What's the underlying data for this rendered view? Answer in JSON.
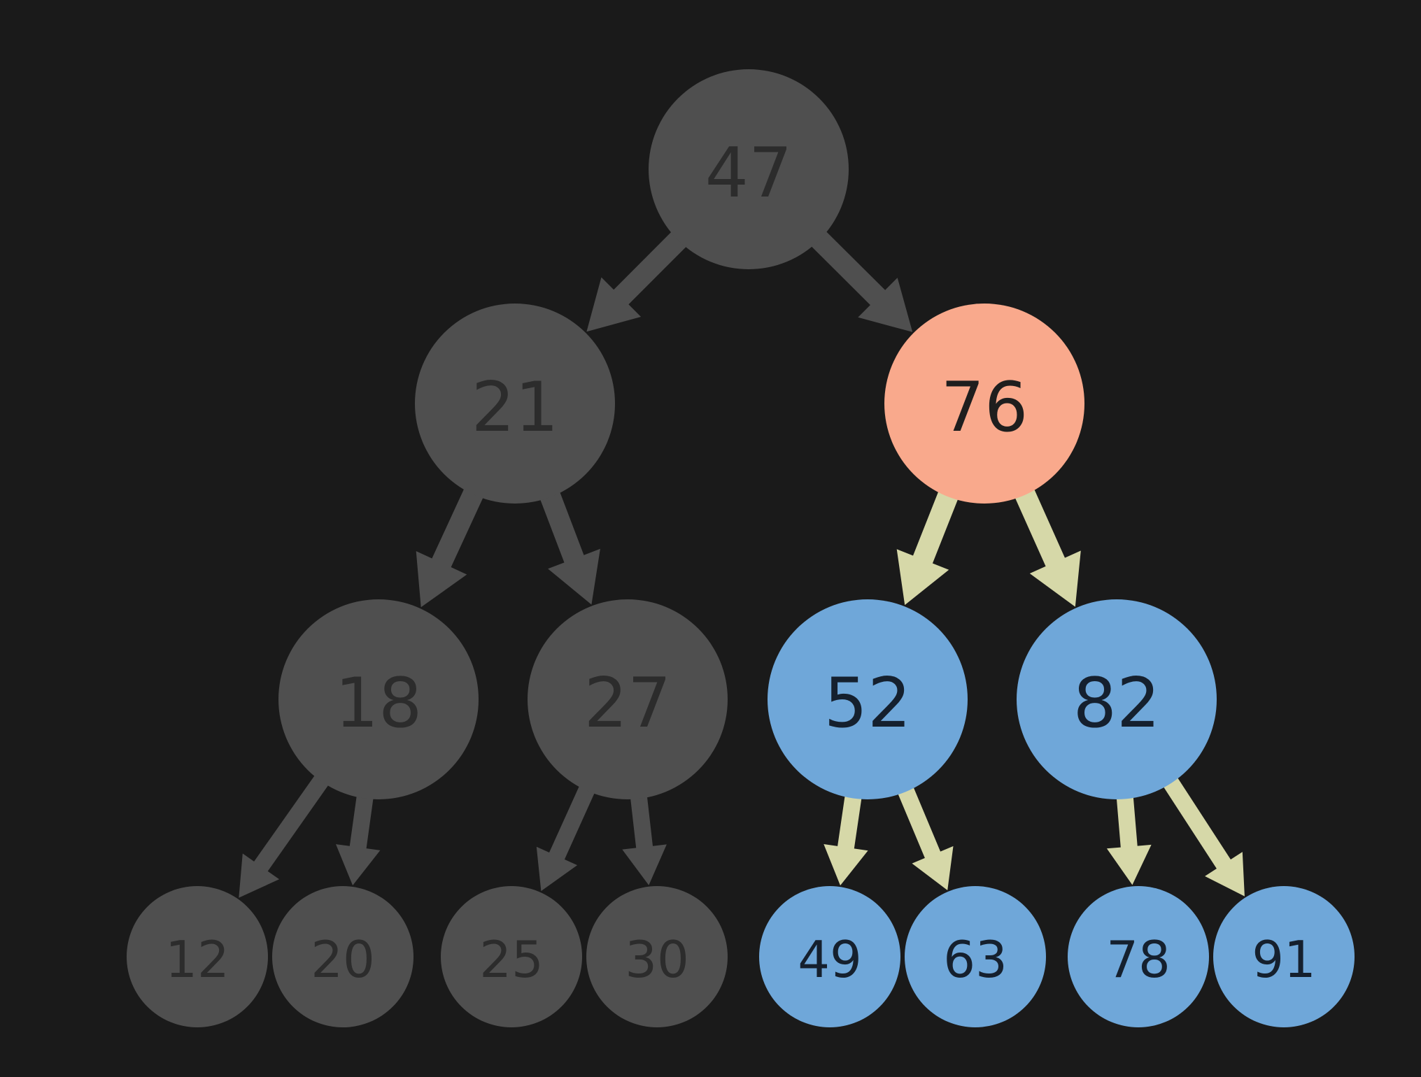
{
  "colors": {
    "background": "#1a1a1a",
    "dim_node": "#4f4f4f",
    "dim_text": "#2c2c2c",
    "dim_edge": "#4f4f4f",
    "highlight_node": "#f9a98c",
    "highlight_text": "#1e1e1e",
    "subtree_node": "#6fa7d9",
    "subtree_text": "#15202e",
    "subtree_edge": "#d6d8a8"
  },
  "tree": {
    "nodes": [
      {
        "id": "n47",
        "label": "47",
        "state": "dim",
        "level": 0
      },
      {
        "id": "n21",
        "label": "21",
        "state": "dim",
        "level": 1
      },
      {
        "id": "n76",
        "label": "76",
        "state": "highlight",
        "level": 1
      },
      {
        "id": "n18",
        "label": "18",
        "state": "dim",
        "level": 2
      },
      {
        "id": "n27",
        "label": "27",
        "state": "dim",
        "level": 2
      },
      {
        "id": "n52",
        "label": "52",
        "state": "subtree",
        "level": 2
      },
      {
        "id": "n82",
        "label": "82",
        "state": "subtree",
        "level": 2
      },
      {
        "id": "n12",
        "label": "12",
        "state": "dim",
        "level": 3
      },
      {
        "id": "n20",
        "label": "20",
        "state": "dim",
        "level": 3
      },
      {
        "id": "n25",
        "label": "25",
        "state": "dim",
        "level": 3
      },
      {
        "id": "n30",
        "label": "30",
        "state": "dim",
        "level": 3
      },
      {
        "id": "n49",
        "label": "49",
        "state": "subtree",
        "level": 3
      },
      {
        "id": "n63",
        "label": "63",
        "state": "subtree",
        "level": 3
      },
      {
        "id": "n78",
        "label": "78",
        "state": "subtree",
        "level": 3
      },
      {
        "id": "n91",
        "label": "91",
        "state": "subtree",
        "level": 3
      }
    ],
    "edges": [
      {
        "from": "n47",
        "to": "n21",
        "state": "dim"
      },
      {
        "from": "n47",
        "to": "n76",
        "state": "dim"
      },
      {
        "from": "n21",
        "to": "n18",
        "state": "dim"
      },
      {
        "from": "n21",
        "to": "n27",
        "state": "dim"
      },
      {
        "from": "n76",
        "to": "n52",
        "state": "subtree"
      },
      {
        "from": "n76",
        "to": "n82",
        "state": "subtree"
      },
      {
        "from": "n18",
        "to": "n12",
        "state": "dim"
      },
      {
        "from": "n18",
        "to": "n20",
        "state": "dim"
      },
      {
        "from": "n27",
        "to": "n25",
        "state": "dim"
      },
      {
        "from": "n27",
        "to": "n30",
        "state": "dim"
      },
      {
        "from": "n52",
        "to": "n49",
        "state": "subtree"
      },
      {
        "from": "n52",
        "to": "n63",
        "state": "subtree"
      },
      {
        "from": "n82",
        "to": "n78",
        "state": "subtree"
      },
      {
        "from": "n82",
        "to": "n91",
        "state": "subtree"
      }
    ]
  }
}
